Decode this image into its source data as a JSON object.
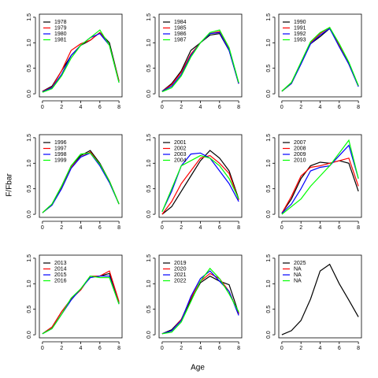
{
  "ylabel": "F/Fbar",
  "xlabel": "Age",
  "chart_data": [
    {
      "type": "line",
      "legend": "topleft",
      "x": [
        0,
        1,
        2,
        3,
        4,
        5,
        6,
        7,
        8
      ],
      "xlim": [
        0,
        8
      ],
      "ylim": [
        0,
        1.5
      ],
      "xticks": [
        0,
        2,
        4,
        6,
        8
      ],
      "yticks": [
        {
          "value": 0,
          "label": "0.0"
        },
        {
          "value": 0.5,
          "label": "0.5"
        },
        {
          "value": 1,
          "label": "1.0"
        },
        {
          "value": 1.5,
          "label": "1.5"
        }
      ],
      "series": [
        {
          "name": "1978",
          "color": "#000000",
          "values": [
            0.05,
            0.15,
            0.45,
            0.75,
            0.95,
            1.05,
            1.2,
            1.0,
            0.25
          ]
        },
        {
          "name": "1979",
          "color": "#ff0000",
          "values": [
            0.05,
            0.13,
            0.45,
            0.85,
            0.98,
            1.05,
            1.2,
            0.95,
            0.25
          ]
        },
        {
          "name": "1980",
          "color": "#0000ff",
          "values": [
            0.04,
            0.12,
            0.38,
            0.75,
            0.95,
            1.1,
            1.18,
            0.95,
            0.22
          ]
        },
        {
          "name": "1981",
          "color": "#00ff00",
          "values": [
            0.03,
            0.1,
            0.35,
            0.7,
            0.95,
            1.1,
            1.25,
            0.95,
            0.22
          ]
        }
      ]
    },
    {
      "type": "line",
      "legend": "topleft",
      "x": [
        0,
        1,
        2,
        3,
        4,
        5,
        6,
        7,
        8
      ],
      "xlim": [
        0,
        8
      ],
      "ylim": [
        0,
        1.5
      ],
      "xticks": [
        0,
        2,
        4,
        6,
        8
      ],
      "yticks": [
        {
          "value": 0,
          "label": "0.0"
        },
        {
          "value": 0.5,
          "label": "0.5"
        },
        {
          "value": 1,
          "label": "1.0"
        },
        {
          "value": 1.5,
          "label": "1.5"
        }
      ],
      "series": [
        {
          "name": "1984",
          "color": "#000000",
          "values": [
            0.05,
            0.2,
            0.45,
            0.85,
            1.0,
            1.15,
            1.18,
            0.85,
            0.2
          ]
        },
        {
          "name": "1985",
          "color": "#ff0000",
          "values": [
            0.05,
            0.18,
            0.42,
            0.78,
            1.0,
            1.18,
            1.22,
            0.88,
            0.2
          ]
        },
        {
          "name": "1986",
          "color": "#0000ff",
          "values": [
            0.05,
            0.15,
            0.38,
            0.75,
            1.0,
            1.18,
            1.2,
            0.85,
            0.2
          ]
        },
        {
          "name": "1987",
          "color": "#00ff00",
          "values": [
            0.04,
            0.12,
            0.35,
            0.72,
            1.0,
            1.2,
            1.25,
            0.9,
            0.22
          ]
        }
      ]
    },
    {
      "type": "line",
      "legend": "topleft",
      "x": [
        0,
        1,
        2,
        3,
        4,
        5,
        6,
        7,
        8
      ],
      "xlim": [
        0,
        8
      ],
      "ylim": [
        0,
        1.5
      ],
      "xticks": [
        0,
        2,
        4,
        6,
        8
      ],
      "yticks": [
        {
          "value": 0,
          "label": "0.0"
        },
        {
          "value": 0.5,
          "label": "0.5"
        },
        {
          "value": 1,
          "label": "1.0"
        },
        {
          "value": 1.5,
          "label": "1.5"
        }
      ],
      "series": [
        {
          "name": "1990",
          "color": "#000000",
          "values": [
            0.05,
            0.22,
            0.6,
            0.98,
            1.12,
            1.28,
            0.95,
            0.6,
            0.15
          ]
        },
        {
          "name": "1991",
          "color": "#ff0000",
          "values": [
            0.05,
            0.2,
            0.6,
            1.0,
            1.18,
            1.3,
            0.95,
            0.58,
            0.15
          ]
        },
        {
          "name": "1992",
          "color": "#0000ff",
          "values": [
            0.05,
            0.2,
            0.58,
            0.98,
            1.15,
            1.28,
            0.92,
            0.58,
            0.14
          ]
        },
        {
          "name": "1993",
          "color": "#00ff00",
          "values": [
            0.05,
            0.22,
            0.62,
            1.02,
            1.2,
            1.3,
            0.98,
            0.62,
            0.16
          ]
        }
      ]
    },
    {
      "type": "line",
      "legend": "topleft",
      "x": [
        0,
        1,
        2,
        3,
        4,
        5,
        6,
        7,
        8
      ],
      "xlim": [
        0,
        8
      ],
      "ylim": [
        0,
        1.5
      ],
      "xticks": [
        0,
        2,
        4,
        6,
        8
      ],
      "yticks": [
        {
          "value": 0,
          "label": "0.0"
        },
        {
          "value": 0.5,
          "label": "0.5"
        },
        {
          "value": 1,
          "label": "1.0"
        },
        {
          "value": 1.5,
          "label": "1.5"
        }
      ],
      "series": [
        {
          "name": "1996",
          "color": "#000000",
          "values": [
            0.03,
            0.2,
            0.55,
            0.95,
            1.15,
            1.25,
            1.0,
            0.65,
            0.2
          ]
        },
        {
          "name": "1997",
          "color": "#ff0000",
          "values": [
            0.03,
            0.18,
            0.52,
            0.92,
            1.12,
            1.22,
            0.98,
            0.65,
            0.2
          ]
        },
        {
          "name": "1998",
          "color": "#0000ff",
          "values": [
            0.03,
            0.18,
            0.5,
            0.9,
            1.12,
            1.2,
            0.95,
            0.62,
            0.2
          ]
        },
        {
          "name": "1999",
          "color": "#00ff00",
          "values": [
            0.03,
            0.2,
            0.55,
            0.95,
            1.18,
            1.2,
            0.98,
            0.65,
            0.2
          ]
        }
      ]
    },
    {
      "type": "line",
      "legend": "topleft",
      "x": [
        0,
        1,
        2,
        3,
        4,
        5,
        6,
        7,
        8
      ],
      "xlim": [
        0,
        8
      ],
      "ylim": [
        0,
        1.5
      ],
      "xticks": [
        0,
        2,
        4,
        6,
        8
      ],
      "yticks": [
        {
          "value": 0,
          "label": "0.0"
        },
        {
          "value": 0.5,
          "label": "0.5"
        },
        {
          "value": 1,
          "label": "1.0"
        },
        {
          "value": 1.5,
          "label": "1.5"
        }
      ],
      "series": [
        {
          "name": "2001",
          "color": "#000000",
          "values": [
            0.0,
            0.15,
            0.45,
            0.75,
            1.05,
            1.25,
            1.1,
            0.85,
            0.3
          ]
        },
        {
          "name": "2002",
          "color": "#ff0000",
          "values": [
            0.0,
            0.25,
            0.6,
            0.85,
            1.1,
            1.15,
            1.0,
            0.8,
            0.28
          ]
        },
        {
          "name": "2003",
          "color": "#0000ff",
          "values": [
            0.05,
            0.45,
            0.95,
            1.18,
            1.2,
            1.1,
            0.85,
            0.6,
            0.25
          ]
        },
        {
          "name": "2004",
          "color": "#00ff00",
          "values": [
            0.05,
            0.5,
            0.95,
            1.05,
            1.15,
            1.1,
            0.95,
            0.7,
            0.3
          ]
        }
      ]
    },
    {
      "type": "line",
      "legend": "topleft",
      "x": [
        0,
        1,
        2,
        3,
        4,
        5,
        6,
        7,
        8
      ],
      "xlim": [
        0,
        8
      ],
      "ylim": [
        0,
        1.5
      ],
      "xticks": [
        0,
        2,
        4,
        6,
        8
      ],
      "yticks": [
        {
          "value": 0,
          "label": "0.0"
        },
        {
          "value": 0.5,
          "label": "0.5"
        },
        {
          "value": 1,
          "label": "1.0"
        },
        {
          "value": 1.5,
          "label": "1.5"
        }
      ],
      "series": [
        {
          "name": "2007",
          "color": "#000000",
          "values": [
            0.02,
            0.3,
            0.7,
            0.95,
            1.02,
            1.0,
            1.05,
            1.0,
            0.45
          ]
        },
        {
          "name": "2008",
          "color": "#ff0000",
          "values": [
            0.02,
            0.35,
            0.75,
            0.92,
            0.95,
            1.0,
            1.05,
            1.1,
            0.55
          ]
        },
        {
          "name": "2009",
          "color": "#0000ff",
          "values": [
            0.02,
            0.2,
            0.5,
            0.85,
            0.92,
            0.95,
            1.15,
            1.35,
            0.7
          ]
        },
        {
          "name": "2010",
          "color": "#00ff00",
          "values": [
            0.0,
            0.15,
            0.3,
            0.55,
            0.75,
            0.95,
            1.2,
            1.45,
            0.7
          ]
        }
      ]
    },
    {
      "type": "line",
      "legend": "topleft",
      "x": [
        0,
        1,
        2,
        3,
        4,
        5,
        6,
        7,
        8
      ],
      "xlim": [
        0,
        8
      ],
      "ylim": [
        0,
        1.5
      ],
      "xticks": [
        0,
        2,
        4,
        6,
        8
      ],
      "yticks": [
        {
          "value": 0,
          "label": "0.0"
        },
        {
          "value": 0.5,
          "label": "0.5"
        },
        {
          "value": 1,
          "label": "1.0"
        },
        {
          "value": 1.5,
          "label": "1.5"
        }
      ],
      "series": [
        {
          "name": "2013",
          "color": "#000000",
          "values": [
            0.02,
            0.15,
            0.45,
            0.7,
            0.88,
            1.15,
            1.15,
            1.2,
            0.62
          ]
        },
        {
          "name": "2014",
          "color": "#ff0000",
          "values": [
            0.02,
            0.15,
            0.45,
            0.7,
            0.88,
            1.15,
            1.15,
            1.25,
            0.65
          ]
        },
        {
          "name": "2015",
          "color": "#0000ff",
          "values": [
            0.02,
            0.12,
            0.4,
            0.68,
            0.9,
            1.12,
            1.15,
            1.15,
            0.6
          ]
        },
        {
          "name": "2016",
          "color": "#00ff00",
          "values": [
            0.02,
            0.12,
            0.4,
            0.72,
            0.9,
            1.15,
            1.12,
            1.12,
            0.6
          ]
        }
      ]
    },
    {
      "type": "line",
      "legend": "topleft",
      "x": [
        0,
        1,
        2,
        3,
        4,
        5,
        6,
        7,
        8
      ],
      "xlim": [
        0,
        8
      ],
      "ylim": [
        0,
        1.5
      ],
      "xticks": [
        0,
        2,
        4,
        6,
        8
      ],
      "yticks": [
        {
          "value": 0,
          "label": "0.0"
        },
        {
          "value": 0.5,
          "label": "0.5"
        },
        {
          "value": 1,
          "label": "1.0"
        },
        {
          "value": 1.5,
          "label": "1.5"
        }
      ],
      "series": [
        {
          "name": "2019",
          "color": "#000000",
          "values": [
            0.02,
            0.1,
            0.3,
            0.68,
            1.02,
            1.15,
            1.05,
            0.98,
            0.42
          ]
        },
        {
          "name": "2020",
          "color": "#ff0000",
          "values": [
            0.02,
            0.08,
            0.3,
            0.72,
            1.05,
            1.2,
            1.1,
            0.85,
            0.4
          ]
        },
        {
          "name": "2021",
          "color": "#0000ff",
          "values": [
            0.02,
            0.08,
            0.28,
            0.75,
            1.1,
            1.25,
            1.05,
            0.85,
            0.38
          ]
        },
        {
          "name": "2022",
          "color": "#00ff00",
          "values": [
            0.02,
            0.05,
            0.25,
            0.65,
            1.05,
            1.3,
            1.1,
            0.8,
            0.45
          ]
        }
      ]
    },
    {
      "type": "line",
      "legend": "topleft",
      "x": [
        0,
        1,
        2,
        3,
        4,
        5,
        6,
        7,
        8
      ],
      "xlim": [
        0,
        8
      ],
      "ylim": [
        0,
        1.5
      ],
      "xticks": [
        0,
        2,
        4,
        6,
        8
      ],
      "yticks": [
        {
          "value": 0,
          "label": "0.0"
        },
        {
          "value": 0.5,
          "label": "0.5"
        },
        {
          "value": 1,
          "label": "1.0"
        },
        {
          "value": 1.5,
          "label": "1.5"
        }
      ],
      "series": [
        {
          "name": "2025",
          "color": "#000000",
          "values": [
            0.0,
            0.08,
            0.28,
            0.7,
            1.25,
            1.38,
            1.0,
            0.68,
            0.35
          ]
        },
        {
          "name": "NA",
          "color": "#ff0000",
          "values": [
            null,
            null,
            null,
            null,
            null,
            null,
            null,
            null,
            null
          ]
        },
        {
          "name": "NA",
          "color": "#0000ff",
          "values": [
            null,
            null,
            null,
            null,
            null,
            null,
            null,
            null,
            null
          ]
        },
        {
          "name": "NA",
          "color": "#00ff00",
          "values": [
            null,
            null,
            null,
            null,
            null,
            null,
            null,
            null,
            null
          ]
        }
      ]
    }
  ]
}
